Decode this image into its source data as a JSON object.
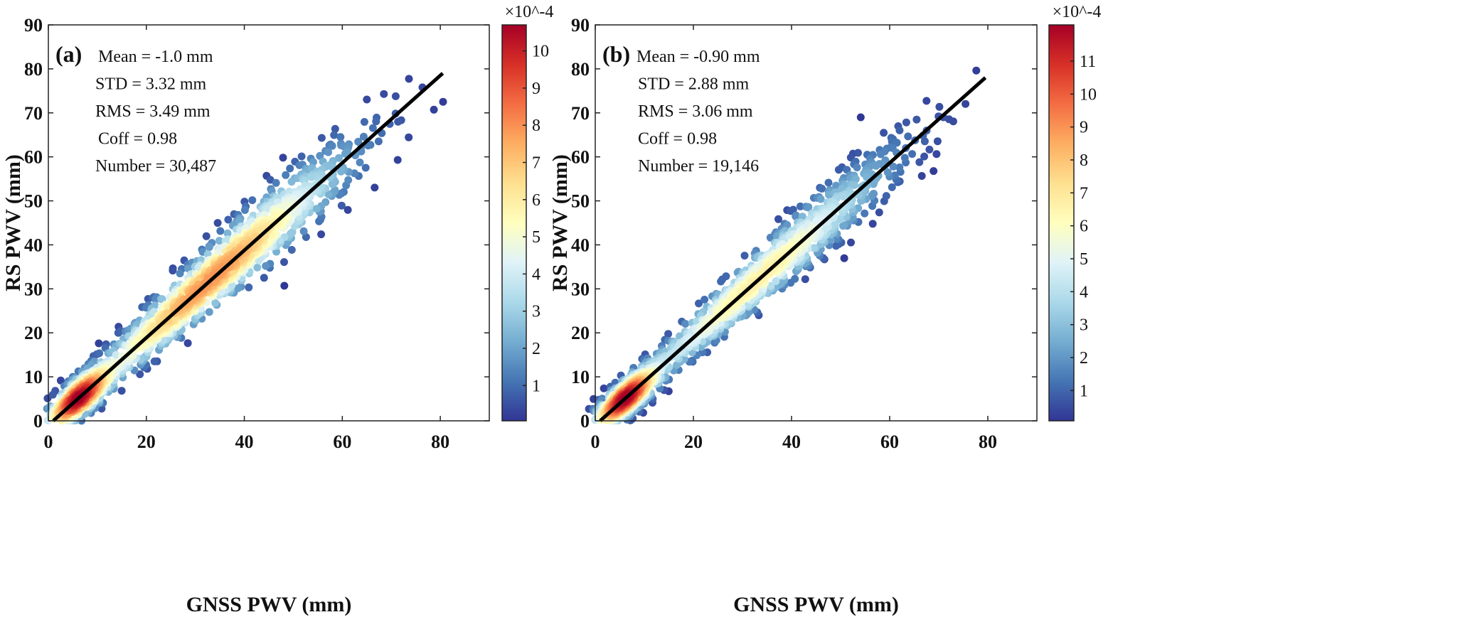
{
  "chart_data": [
    {
      "type": "scatter",
      "panel_label": "(a)",
      "xlabel": "GNSS PWV (mm)",
      "ylabel": "RS PWV (mm)",
      "xlim": [
        0,
        90
      ],
      "ylim": [
        0,
        90
      ],
      "xticks": [
        0,
        20,
        40,
        60,
        80
      ],
      "yticks": [
        0,
        10,
        20,
        30,
        40,
        50,
        60,
        70,
        80,
        90
      ],
      "grid": false,
      "stats": [
        "Mean = -1.0 mm",
        "STD = 3.32 mm",
        "RMS = 3.49 mm",
        "Coff = 0.98",
        "Number = 30,487"
      ],
      "fit_line": {
        "x": [
          1,
          80.5
        ],
        "y": [
          0,
          79
        ]
      },
      "point_count": 30487,
      "colorbar": {
        "label_scale": "×10^-4",
        "range": [
          0.05,
          10.7
        ],
        "ticks": [
          1,
          2,
          3,
          4,
          5,
          6,
          7,
          8,
          9,
          10
        ],
        "colormap": "RdYlBu_r"
      }
    },
    {
      "type": "scatter",
      "panel_label": "(b)",
      "xlabel": "GNSS PWV (mm)",
      "ylabel": "RS PWV (mm)",
      "xlim": [
        0,
        90
      ],
      "ylim": [
        0,
        90
      ],
      "xticks": [
        0,
        20,
        40,
        60,
        80
      ],
      "yticks": [
        0,
        10,
        20,
        30,
        40,
        50,
        60,
        70,
        80,
        90
      ],
      "grid": false,
      "stats": [
        "Mean = -0.90 mm",
        "STD = 2.88 mm",
        "RMS = 3.06 mm",
        "Coff = 0.98",
        "Number = 19,146"
      ],
      "fit_line": {
        "x": [
          1,
          79.5
        ],
        "y": [
          0,
          78
        ]
      },
      "point_count": 19146,
      "colorbar": {
        "label_scale": "×10^-4",
        "range": [
          0.08,
          12.1
        ],
        "ticks": [
          1,
          2,
          3,
          4,
          5,
          6,
          7,
          8,
          9,
          10,
          11
        ],
        "colormap": "RdYlBu_r"
      }
    }
  ],
  "colors": [
    "#313695",
    "#4575b4",
    "#74add1",
    "#abd9e9",
    "#e0f3f8",
    "#ffffbf",
    "#fee090",
    "#fdae61",
    "#f46d43",
    "#d73027",
    "#a50026"
  ]
}
